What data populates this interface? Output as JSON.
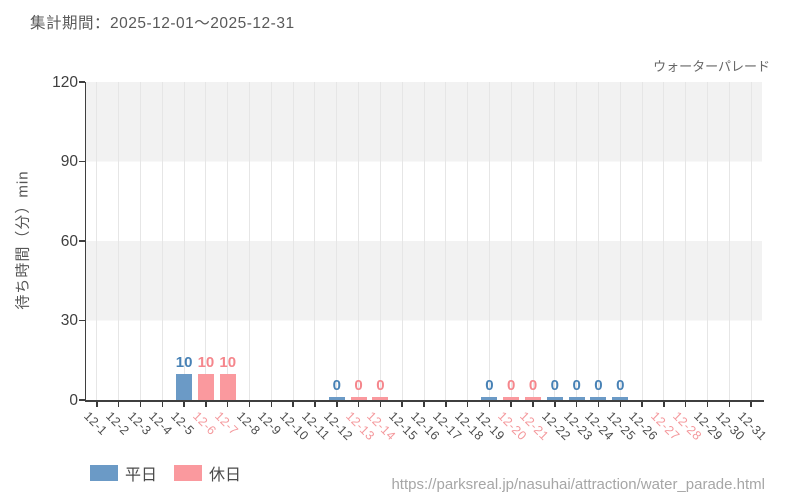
{
  "header": {
    "period_label": "集計期間：2025-12-01〜2025-12-31"
  },
  "chart_data": {
    "type": "bar",
    "title": "ウォーターパレード",
    "xlabel": "",
    "ylabel": "待ち時間（分）min",
    "ylim": [
      0,
      120
    ],
    "yticks": [
      0,
      30,
      60,
      90,
      120
    ],
    "grid": "horizontal-bands",
    "legend_position": "bottom-left",
    "categories": [
      "12-1",
      "12-2",
      "12-3",
      "12-4",
      "12-5",
      "12-6",
      "12-7",
      "12-8",
      "12-9",
      "12-10",
      "12-11",
      "12-12",
      "12-13",
      "12-14",
      "12-15",
      "12-16",
      "12-17",
      "12-18",
      "12-19",
      "12-20",
      "12-21",
      "12-22",
      "12-23",
      "12-24",
      "12-25",
      "12-26",
      "12-27",
      "12-28",
      "12-29",
      "12-30",
      "12-31"
    ],
    "weekend_categories": [
      "12-6",
      "12-7",
      "12-13",
      "12-14",
      "12-20",
      "12-21",
      "12-27",
      "12-28"
    ],
    "series": [
      {
        "name": "平日",
        "color": "#6b9ac6",
        "label_color": "#4781b5",
        "values": [
          null,
          null,
          null,
          null,
          10,
          null,
          null,
          null,
          null,
          null,
          null,
          0,
          null,
          null,
          null,
          null,
          null,
          null,
          0,
          null,
          null,
          0,
          0,
          0,
          0,
          null,
          null,
          null,
          null,
          null,
          null
        ]
      },
      {
        "name": "休日",
        "color": "#fa999e",
        "label_color": "#f5868c",
        "values": [
          null,
          null,
          null,
          null,
          null,
          10,
          10,
          null,
          null,
          null,
          null,
          null,
          0,
          0,
          null,
          null,
          null,
          null,
          null,
          0,
          0,
          null,
          null,
          null,
          null,
          null,
          null,
          null,
          null,
          null,
          null
        ]
      }
    ]
  },
  "legend": [
    {
      "label": "平日"
    },
    {
      "label": "休日"
    }
  ],
  "footer": {
    "url": "https://parksreal.jp/nasuhai/attraction/water_parade.html"
  },
  "colors": {
    "weekday_bar": "#6b9ac6",
    "holiday_bar": "#fa999e",
    "weekend_tick_label": "#f4989c",
    "band_gray": "#f2f2f2",
    "axis": "#3f3f3f"
  }
}
